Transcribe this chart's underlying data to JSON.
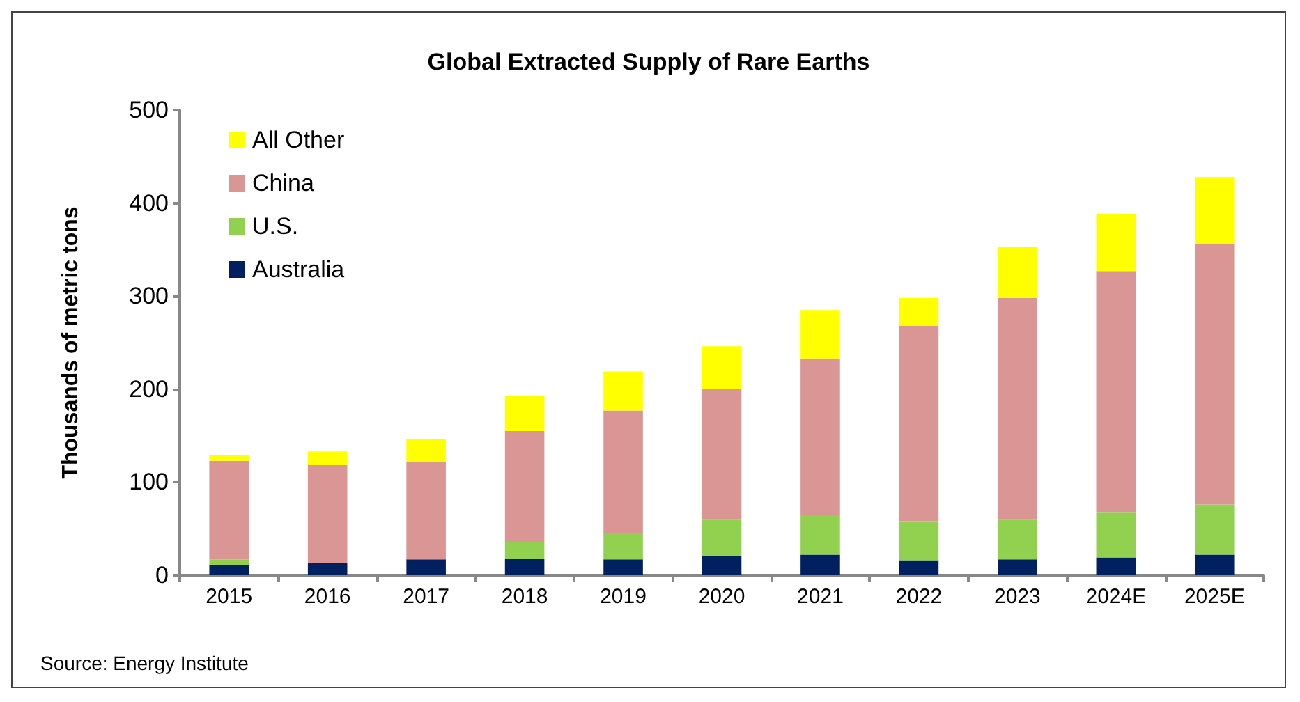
{
  "chart_data": {
    "type": "bar",
    "title": "Global Extracted Supply of Rare Earths",
    "ylabel": "Thousands of metric tons",
    "categories": [
      "2015",
      "2016",
      "2017",
      "2018",
      "2019",
      "2020",
      "2021",
      "2022",
      "2023",
      "2024E",
      "2025E"
    ],
    "stacked": true,
    "series": [
      {
        "name": "Australia",
        "color": "#002060",
        "values": [
          11,
          13,
          17,
          18,
          17,
          21,
          22,
          16,
          17,
          19,
          22
        ]
      },
      {
        "name": "U.S.",
        "color": "#92d050",
        "values": [
          6,
          0,
          0,
          18,
          28,
          39,
          43,
          42,
          43,
          49,
          54
        ]
      },
      {
        "name": "China",
        "color": "#d99694",
        "values": [
          106,
          106,
          105,
          119,
          132,
          140,
          168,
          210,
          238,
          259,
          280
        ]
      },
      {
        "name": "All Other",
        "color": "#ffff00",
        "values": [
          6,
          14,
          24,
          38,
          42,
          46,
          52,
          30,
          55,
          61,
          72
        ]
      }
    ],
    "ylim": [
      0,
      500
    ],
    "yticks": [
      0,
      100,
      200,
      300,
      400,
      500
    ],
    "grid": false,
    "legend": "top left",
    "annotations": [
      "Source: Energy Institute"
    ]
  }
}
